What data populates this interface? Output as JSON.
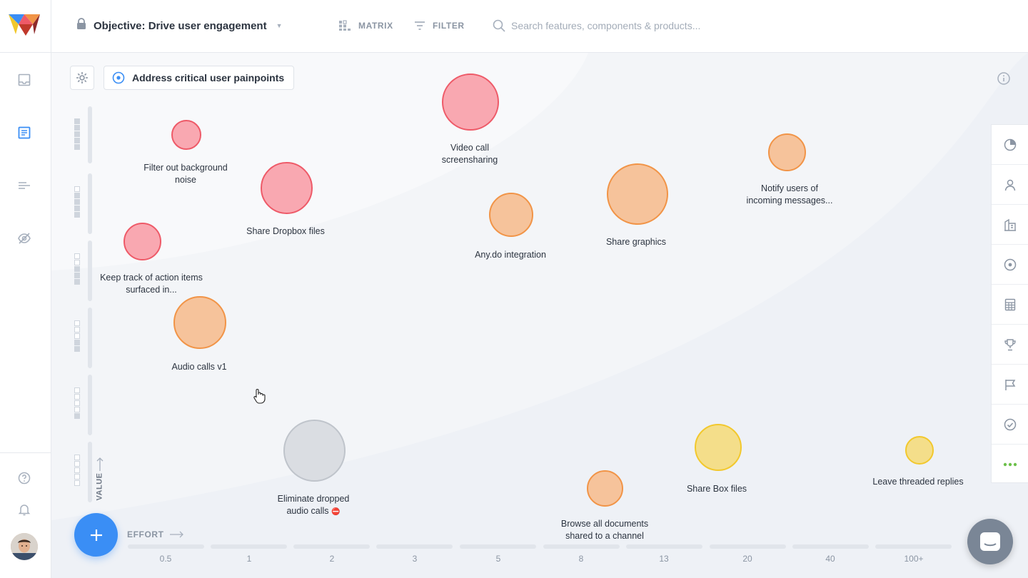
{
  "app": {
    "name": "Airfocus-style prioritization matrix"
  },
  "header": {
    "objective_title": "Objective: Drive user engagement",
    "matrix_label": "MATRIX",
    "filter_label": "FILTER",
    "search_placeholder": "Search features, components & products..."
  },
  "toolbar": {
    "goal_label": "Address critical user painpoints"
  },
  "axes": {
    "value_label": "VALUE",
    "effort_label": "EFFORT",
    "effort_ticks": [
      "0.5",
      "1",
      "2",
      "3",
      "5",
      "8",
      "13",
      "20",
      "40",
      "100+"
    ]
  },
  "items": [
    {
      "label": "Filter out background noise",
      "color": "red"
    },
    {
      "label": "Share Dropbox files",
      "color": "red"
    },
    {
      "label": "Keep track of action items surfaced in...",
      "color": "red"
    },
    {
      "label": "Video call screensharing",
      "color": "red"
    },
    {
      "label": "Audio calls v1",
      "color": "orange"
    },
    {
      "label": "Any.do integration",
      "color": "orange"
    },
    {
      "label": "Share graphics",
      "color": "orange"
    },
    {
      "label": "Notify users of incoming messages...",
      "color": "orange"
    },
    {
      "label": "Eliminate dropped audio calls",
      "color": "gray",
      "badge": "⛔"
    },
    {
      "label": "Browse all documents shared to a channel",
      "color": "orange"
    },
    {
      "label": "Share Box files",
      "color": "yellow"
    },
    {
      "label": "Leave threaded replies",
      "color": "yellow"
    }
  ],
  "colors": {
    "red": "#ee5a68",
    "orange": "#f19447",
    "yellow": "#f2c82d",
    "gray": "#bfc4cb",
    "accent": "#3a8ef5",
    "more_dots": "#6cc04a"
  },
  "sidebar": {
    "icons": [
      "inbox-icon",
      "document-icon",
      "list-icon",
      "hidden-icon",
      "help-icon",
      "bell-icon"
    ]
  },
  "right_panel": {
    "icons": [
      "pie-chart-icon",
      "user-icon",
      "buildings-icon",
      "target-icon",
      "calculator-icon",
      "trophy-icon",
      "flag-icon",
      "check-circle-icon",
      "more-icon"
    ]
  }
}
